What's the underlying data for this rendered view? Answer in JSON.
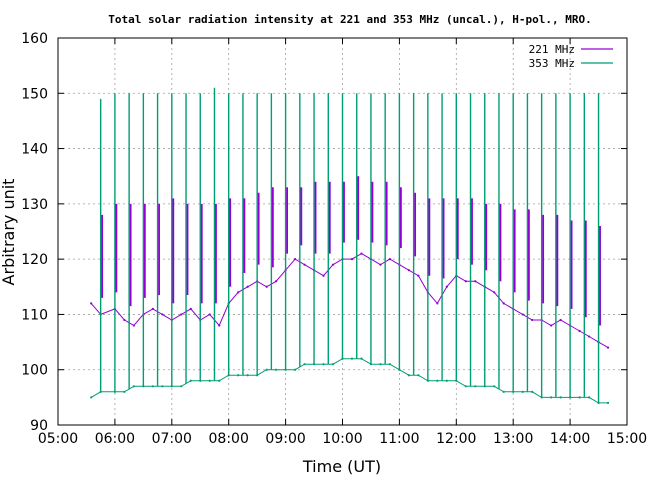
{
  "chart_data": {
    "type": "line",
    "title": "Total solar radiation intensity at 221 and 353 MHz (uncal.), H-pol., MRO.",
    "xlabel": "Time (UT)",
    "ylabel": "Arbitrary unit",
    "xlim": [
      "05:00",
      "15:00"
    ],
    "ylim": [
      90,
      160
    ],
    "x_ticks": [
      "05:00",
      "06:00",
      "07:00",
      "08:00",
      "09:00",
      "10:00",
      "11:00",
      "12:00",
      "13:00",
      "14:00",
      "15:00"
    ],
    "y_ticks": [
      90,
      100,
      110,
      120,
      130,
      140,
      150,
      160
    ],
    "grid": true,
    "legend_position": "top-right",
    "series": [
      {
        "name": "221 MHz",
        "color": "#9400d3",
        "x": [
          "05:35",
          "05:45",
          "06:00",
          "06:10",
          "06:20",
          "06:30",
          "06:40",
          "06:50",
          "07:00",
          "07:10",
          "07:20",
          "07:30",
          "07:40",
          "07:50",
          "08:00",
          "08:10",
          "08:20",
          "08:30",
          "08:40",
          "08:50",
          "09:00",
          "09:10",
          "09:20",
          "09:30",
          "09:40",
          "09:50",
          "10:00",
          "10:10",
          "10:20",
          "10:30",
          "10:40",
          "10:50",
          "11:00",
          "11:10",
          "11:20",
          "11:30",
          "11:40",
          "11:50",
          "12:00",
          "12:10",
          "12:20",
          "12:30",
          "12:40",
          "12:50",
          "13:00",
          "13:10",
          "13:20",
          "13:30",
          "13:40",
          "13:50",
          "14:00",
          "14:10",
          "14:20",
          "14:30",
          "14:40"
        ],
        "values": [
          112,
          110,
          111,
          109,
          108,
          110,
          111,
          110,
          109,
          110,
          111,
          109,
          110,
          108,
          112,
          114,
          115,
          116,
          115,
          116,
          118,
          120,
          119,
          118,
          117,
          119,
          120,
          120,
          121,
          120,
          119,
          120,
          119,
          118,
          117,
          114,
          112,
          115,
          117,
          116,
          116,
          115,
          114,
          112,
          111,
          110,
          109,
          109,
          108,
          109,
          108,
          107,
          106,
          105,
          104
        ]
      },
      {
        "name": "353 MHz",
        "color": "#009e73",
        "x": [
          "05:35",
          "05:45",
          "06:00",
          "06:10",
          "06:20",
          "06:30",
          "06:40",
          "06:50",
          "07:00",
          "07:10",
          "07:20",
          "07:30",
          "07:40",
          "07:50",
          "08:00",
          "08:10",
          "08:20",
          "08:30",
          "08:40",
          "08:50",
          "09:00",
          "09:10",
          "09:20",
          "09:30",
          "09:40",
          "09:50",
          "10:00",
          "10:10",
          "10:20",
          "10:30",
          "10:40",
          "10:50",
          "11:00",
          "11:10",
          "11:20",
          "11:30",
          "11:40",
          "11:50",
          "12:00",
          "12:10",
          "12:20",
          "12:30",
          "12:40",
          "12:50",
          "13:00",
          "13:10",
          "13:20",
          "13:30",
          "13:40",
          "13:50",
          "14:00",
          "14:10",
          "14:20",
          "14:30",
          "14:40"
        ],
        "values": [
          95,
          96,
          96,
          96,
          97,
          97,
          97,
          97,
          97,
          97,
          98,
          98,
          98,
          98,
          99,
          99,
          99,
          99,
          100,
          100,
          100,
          100,
          101,
          101,
          101,
          101,
          102,
          102,
          102,
          101,
          101,
          101,
          100,
          99,
          99,
          98,
          98,
          98,
          98,
          97,
          97,
          97,
          97,
          96,
          96,
          96,
          96,
          95,
          95,
          95,
          95,
          95,
          95,
          94,
          94
        ]
      }
    ],
    "spikes": {
      "times": [
        "05:45",
        "06:00",
        "06:15",
        "06:30",
        "06:45",
        "07:00",
        "07:15",
        "07:30",
        "07:45",
        "08:00",
        "08:15",
        "08:30",
        "08:45",
        "09:00",
        "09:15",
        "09:30",
        "09:45",
        "10:00",
        "10:15",
        "10:30",
        "10:45",
        "11:00",
        "11:15",
        "11:30",
        "11:45",
        "12:00",
        "12:15",
        "12:30",
        "12:45",
        "13:00",
        "13:15",
        "13:30",
        "13:45",
        "14:00",
        "14:15",
        "14:30"
      ],
      "spike_221": [
        128,
        130,
        130,
        130,
        130,
        131,
        130,
        130,
        130,
        131,
        131,
        132,
        133,
        133,
        133,
        134,
        134,
        134,
        135,
        134,
        134,
        133,
        132,
        131,
        131,
        131,
        131,
        130,
        130,
        129,
        129,
        128,
        128,
        127,
        127,
        126
      ],
      "spike_353": [
        149,
        150,
        150,
        150,
        150,
        150,
        150,
        150,
        151,
        150,
        150,
        150,
        150,
        150,
        150,
        150,
        150,
        150,
        150,
        150,
        150,
        150,
        150,
        150,
        150,
        150,
        150,
        150,
        150,
        150,
        150,
        150,
        150,
        150,
        150,
        150
      ]
    }
  }
}
